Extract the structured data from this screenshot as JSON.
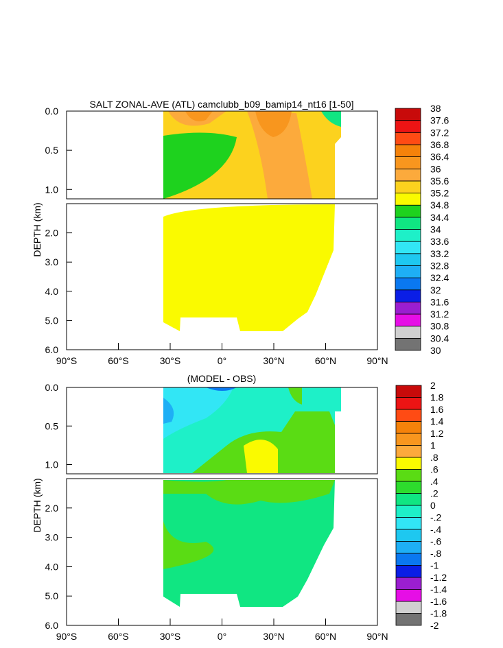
{
  "colors": {
    "salt_levels": [
      "#737373",
      "#d0d0d0",
      "#e60ee6",
      "#9b1ed0",
      "#0a1ee6",
      "#0a78f0",
      "#1eaff5",
      "#1ec8f0",
      "#32e6f5",
      "#1ef0c8",
      "#10e682",
      "#1ed21e",
      "#fafa00",
      "#fcd21e",
      "#fcaa3c",
      "#f8961e",
      "#f5820a",
      "#ff4b14",
      "#ed1414",
      "#c80a0a"
    ],
    "diff_levels": [
      "#737373",
      "#d0d0d0",
      "#e60ee6",
      "#9b1ed0",
      "#0a1ee6",
      "#0a78f0",
      "#1eaff5",
      "#1ec8f0",
      "#32e6f5",
      "#1ef0c8",
      "#10e682",
      "#2ddc2d",
      "#5adc14",
      "#fafa00",
      "#fcaa3c",
      "#f8961e",
      "#f5820a",
      "#ff4b14",
      "#ed1414",
      "#c80a0a"
    ]
  },
  "chart_data": [
    {
      "type": "heatmap",
      "title": "SALT ZONAL-AVE (ATL) camclubb_b09_bamip14_nt16 [1-50]",
      "xlabel": "",
      "ylabel": "DEPTH (km)",
      "xlim": [
        -90,
        90
      ],
      "ylim": [
        0,
        6
      ],
      "x_ticks": [
        "90°S",
        "60°S",
        "30°S",
        "0°",
        "30°N",
        "60°N",
        "90°N"
      ],
      "y_ticks_upper": [
        "0.0",
        "0.5",
        "1.0"
      ],
      "y_ticks_lower": [
        "2.0",
        "3.0",
        "4.0",
        "5.0",
        "6.0"
      ],
      "colorbar_labels": [
        "38",
        "37.6",
        "37.2",
        "36.8",
        "36.4",
        "36",
        "35.6",
        "35.2",
        "34.8",
        "34.4",
        "34",
        "33.6",
        "33.2",
        "32.8",
        "32.4",
        "32",
        "31.6",
        "31.2",
        "30.8",
        "30.4",
        "30"
      ]
    },
    {
      "type": "heatmap",
      "title": "(MODEL - OBS)",
      "xlabel": "",
      "ylabel": "DEPTH (km)",
      "xlim": [
        -90,
        90
      ],
      "ylim": [
        0,
        6
      ],
      "x_ticks": [
        "90°S",
        "60°S",
        "30°S",
        "0°",
        "30°N",
        "60°N",
        "90°N"
      ],
      "y_ticks_upper": [
        "0.0",
        "0.5",
        "1.0"
      ],
      "y_ticks_lower": [
        "2.0",
        "3.0",
        "4.0",
        "5.0",
        "6.0"
      ],
      "colorbar_labels": [
        "2",
        "1.8",
        "1.6",
        "1.4",
        "1.2",
        "1",
        ".8",
        ".6",
        ".4",
        ".2",
        "0",
        "-.2",
        "-.4",
        "-.6",
        "-.8",
        "-1",
        "-1.2",
        "-1.4",
        "-1.6",
        "-1.8",
        "-2"
      ]
    }
  ]
}
